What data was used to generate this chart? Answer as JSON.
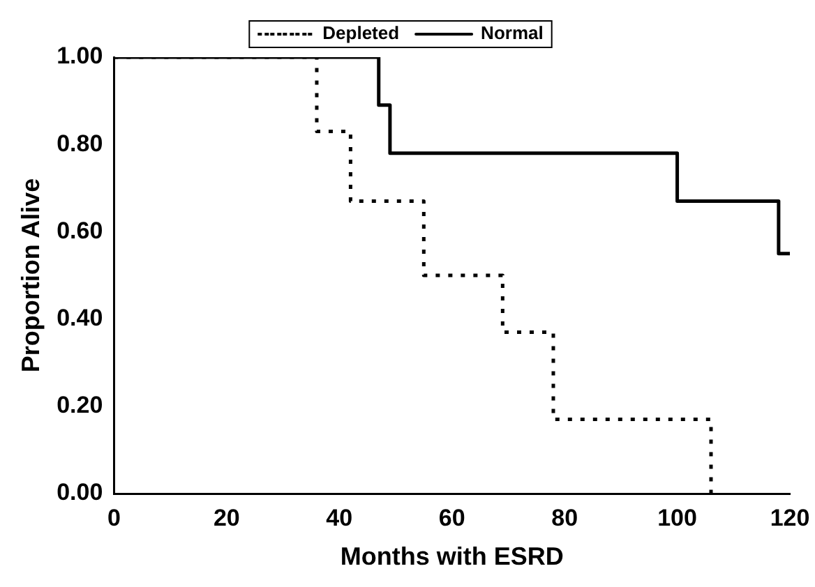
{
  "chart_data": {
    "type": "step",
    "xlabel": "Months with ESRD",
    "ylabel": "Proportion Alive",
    "series": [
      {
        "name": "Depleted",
        "color": "#000000",
        "line_style": "dotted",
        "x": [
          0,
          36,
          42,
          55,
          69,
          78,
          106
        ],
        "values": [
          1,
          0.83,
          0.67,
          0.5,
          0.37,
          0.17,
          0
        ]
      },
      {
        "name": "Normal",
        "color": "#000000",
        "line_style": "solid",
        "x": [
          0,
          47,
          49,
          100,
          118,
          120
        ],
        "values": [
          1,
          0.89,
          0.78,
          0.67,
          0.55,
          0.55
        ]
      }
    ],
    "xlim": [
      0,
      120
    ],
    "xticks": [
      0,
      20,
      40,
      60,
      80,
      100,
      120
    ],
    "ylim": [
      0,
      1
    ],
    "yticks": [
      {
        "value": 0,
        "label": "0.00"
      },
      {
        "value": 0.2,
        "label": "0.20"
      },
      {
        "value": 0.4,
        "label": "0.40"
      },
      {
        "value": 0.6,
        "label": "0.60"
      },
      {
        "value": 0.8,
        "label": "0.80"
      },
      {
        "value": 1,
        "label": "1.00"
      }
    ],
    "grid": false,
    "legend": "top",
    "marker": "none"
  }
}
